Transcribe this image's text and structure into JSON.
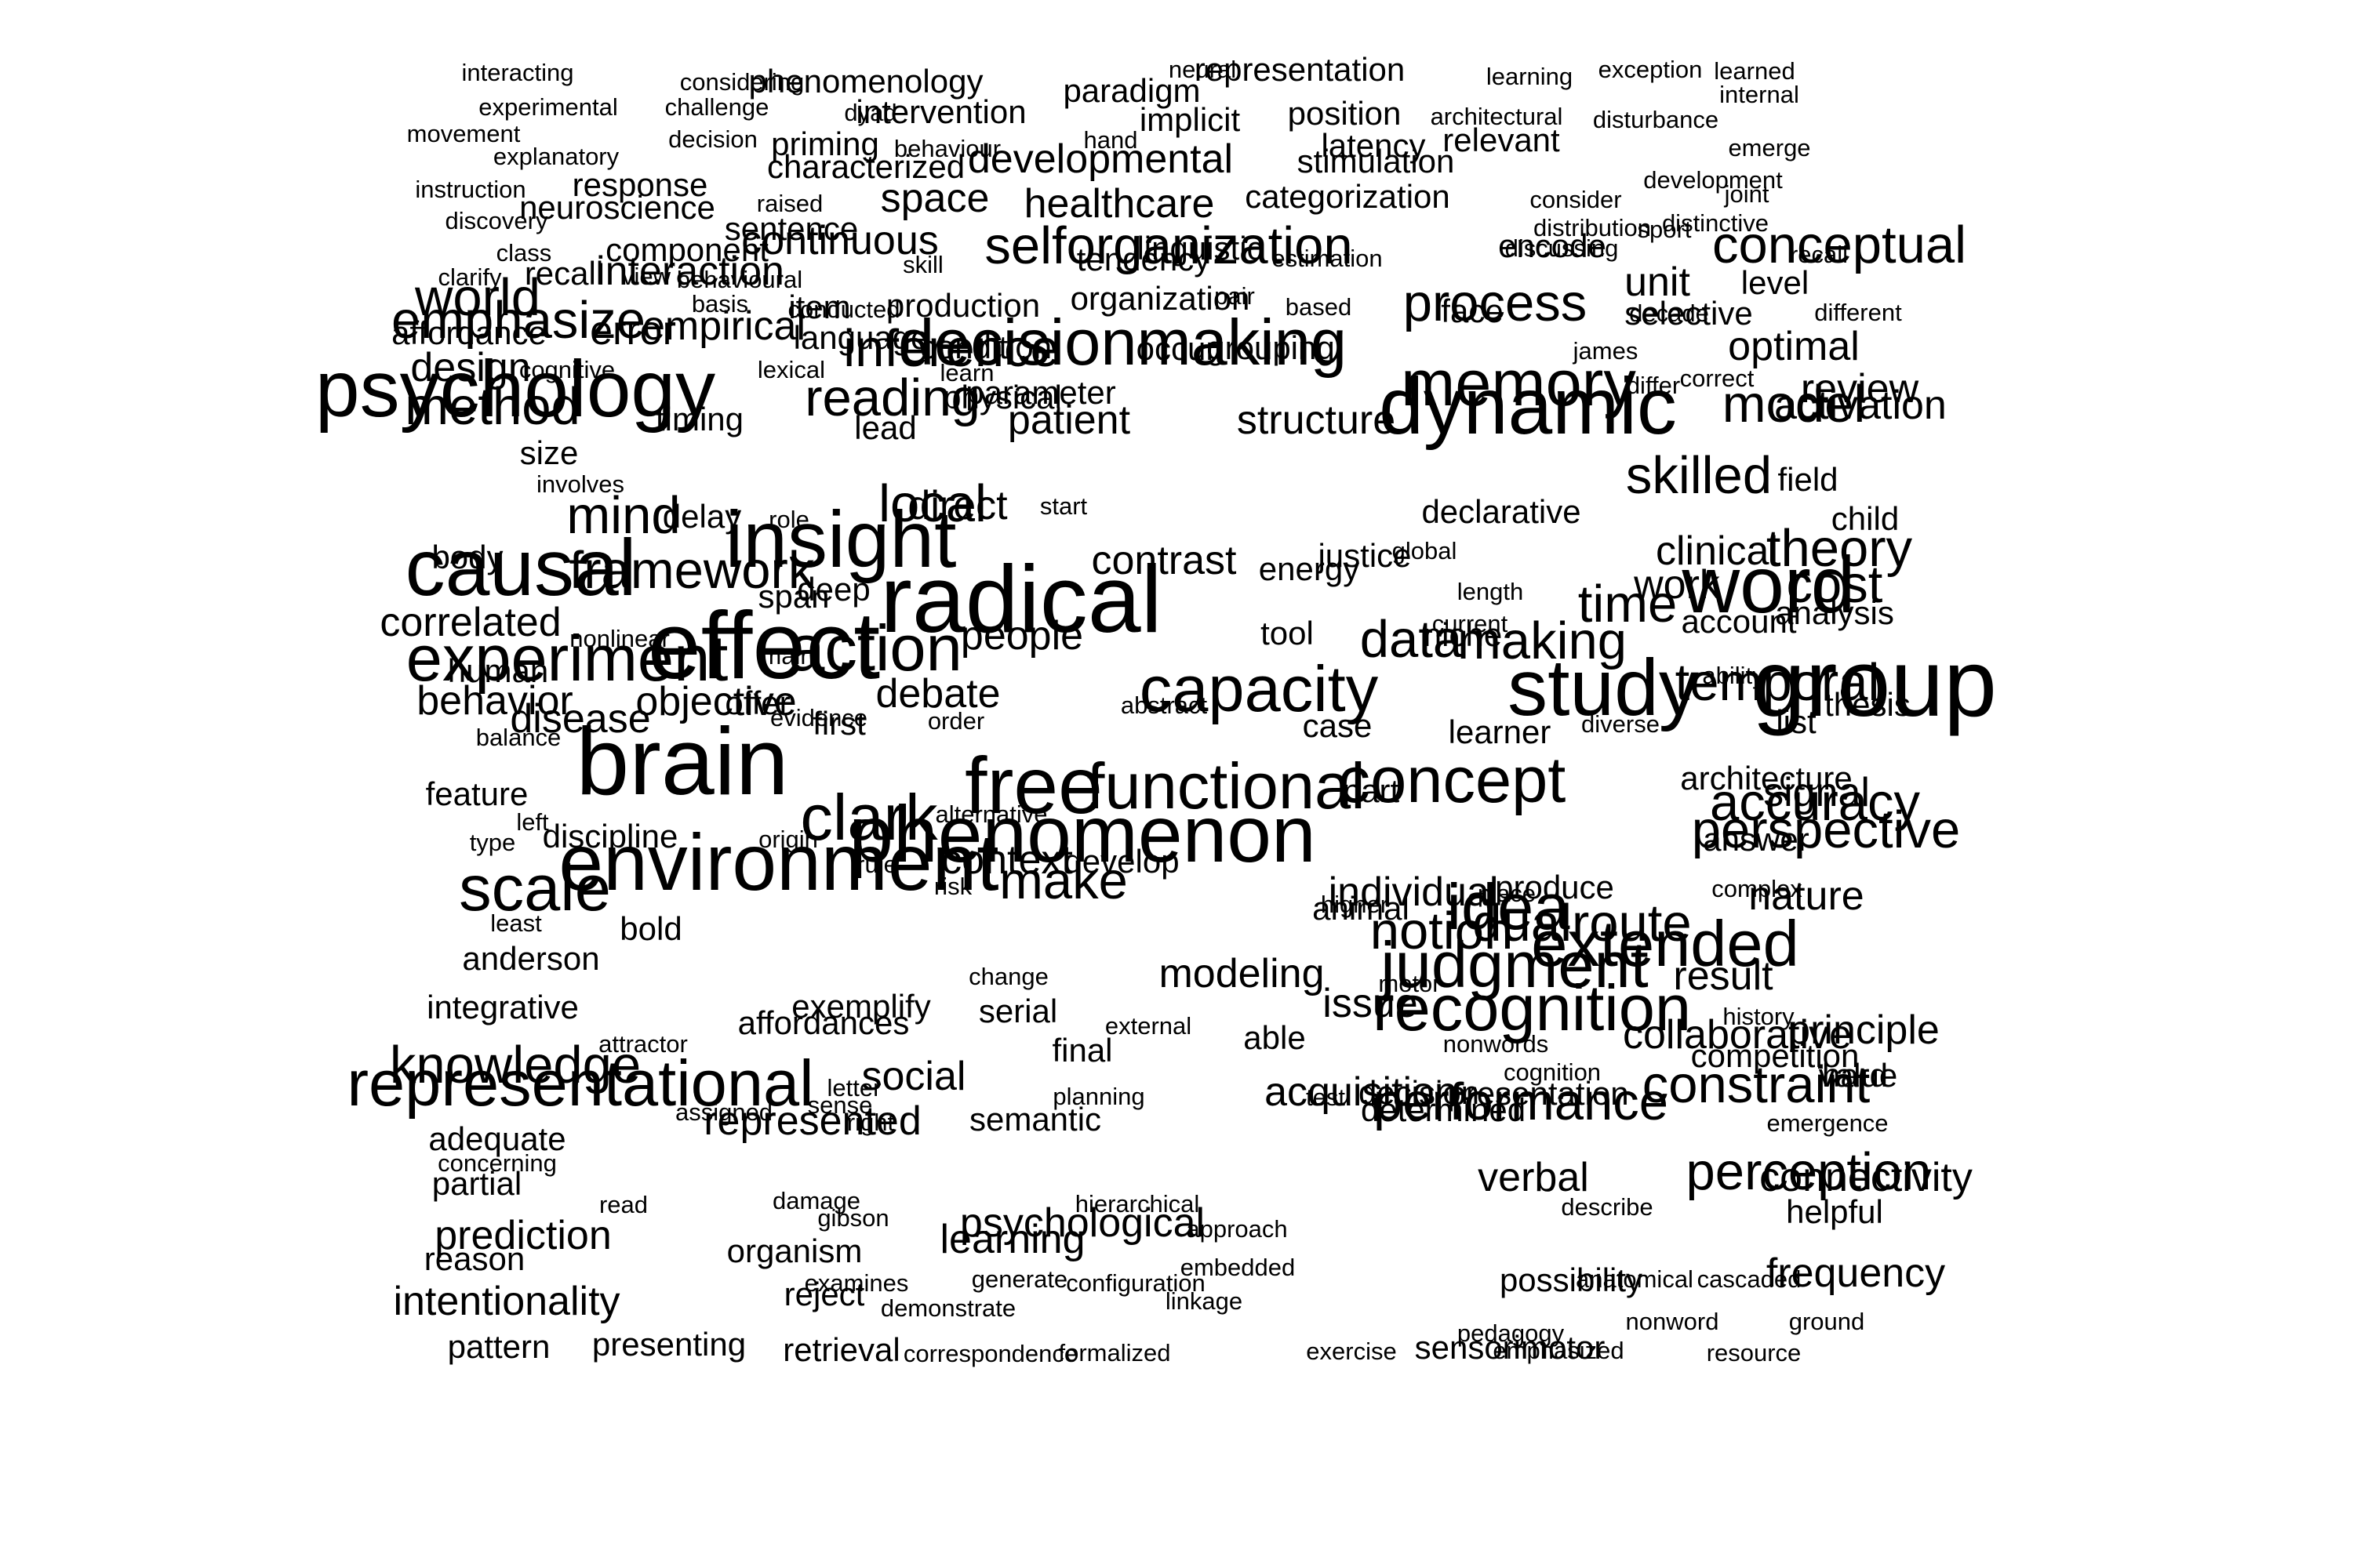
{
  "colors": {
    "background": "#ffffff",
    "text": "#000000"
  },
  "words": [
    {
      "text": "interacting",
      "weight": 1
    },
    {
      "text": "considering",
      "weight": 1
    },
    {
      "text": "phenomenology",
      "weight": 2
    },
    {
      "text": "neural",
      "weight": 1
    },
    {
      "text": "representation",
      "weight": 2
    },
    {
      "text": "learning",
      "weight": 1
    },
    {
      "text": "exception",
      "weight": 1
    },
    {
      "text": "learned",
      "weight": 1
    },
    {
      "text": "paradigm",
      "weight": 2
    },
    {
      "text": "internal",
      "weight": 1
    },
    {
      "text": "experimental",
      "weight": 1
    },
    {
      "text": "challenge",
      "weight": 1
    },
    {
      "text": "dyad",
      "weight": 1
    },
    {
      "text": "intervention",
      "weight": 2
    },
    {
      "text": "implicit",
      "weight": 2
    },
    {
      "text": "position",
      "weight": 2
    },
    {
      "text": "architectural",
      "weight": 1
    },
    {
      "text": "disturbance",
      "weight": 1
    },
    {
      "text": "movement",
      "weight": 1
    },
    {
      "text": "decision",
      "weight": 1
    },
    {
      "text": "priming",
      "weight": 2
    },
    {
      "text": "behaviour",
      "weight": 1
    },
    {
      "text": "hand",
      "weight": 1
    },
    {
      "text": "latency",
      "weight": 2
    },
    {
      "text": "relevant",
      "weight": 2
    },
    {
      "text": "emerge",
      "weight": 1
    },
    {
      "text": "explanatory",
      "weight": 1
    },
    {
      "text": "developmental",
      "weight": 3
    },
    {
      "text": "stimulation",
      "weight": 2
    },
    {
      "text": "instruction",
      "weight": 1
    },
    {
      "text": "response",
      "weight": 2
    },
    {
      "text": "characterized",
      "weight": 2
    },
    {
      "text": "development",
      "weight": 1
    },
    {
      "text": "raised",
      "weight": 1
    },
    {
      "text": "space",
      "weight": 3
    },
    {
      "text": "healthcare",
      "weight": 3
    },
    {
      "text": "categorization",
      "weight": 2
    },
    {
      "text": "consider",
      "weight": 1
    },
    {
      "text": "joint",
      "weight": 1
    },
    {
      "text": "discovery",
      "weight": 1
    },
    {
      "text": "neuroscience",
      "weight": 2
    },
    {
      "text": "sentence",
      "weight": 2
    },
    {
      "text": "distribution",
      "weight": 1
    },
    {
      "text": "distinctive",
      "weight": 1
    },
    {
      "text": "class",
      "weight": 1
    },
    {
      "text": "component",
      "weight": 2
    },
    {
      "text": "continuous",
      "weight": 3
    },
    {
      "text": "selforganization",
      "weight": 4
    },
    {
      "text": "linguistic",
      "weight": 2
    },
    {
      "text": "discussing",
      "weight": 1
    },
    {
      "text": "sport",
      "weight": 1
    },
    {
      "text": "recall",
      "weight": 1
    },
    {
      "text": "clarify",
      "weight": 1
    },
    {
      "text": "recall",
      "weight": 2
    },
    {
      "text": "view",
      "weight": 1
    },
    {
      "text": "behavioural",
      "weight": 1
    },
    {
      "text": "skill",
      "weight": 1
    },
    {
      "text": "tendency",
      "weight": 2
    },
    {
      "text": "estimation",
      "weight": 1
    },
    {
      "text": "encode",
      "weight": 2
    },
    {
      "text": "unit",
      "weight": 3
    },
    {
      "text": "level",
      "weight": 2
    },
    {
      "text": "conceptual",
      "weight": 4
    },
    {
      "text": "world",
      "weight": 4
    },
    {
      "text": "interaction",
      "weight": 3
    },
    {
      "text": "conducted",
      "weight": 1
    },
    {
      "text": "basis",
      "weight": 1
    },
    {
      "text": "item",
      "weight": 2
    },
    {
      "text": "based",
      "weight": 1
    },
    {
      "text": "process",
      "weight": 4
    },
    {
      "text": "production",
      "weight": 2
    },
    {
      "text": "selective",
      "weight": 2
    },
    {
      "text": "affordance",
      "weight": 2
    },
    {
      "text": "emphasize",
      "weight": 4
    },
    {
      "text": "error",
      "weight": 3
    },
    {
      "text": "empirical",
      "weight": 3
    },
    {
      "text": "language",
      "weight": 2
    },
    {
      "text": "organization",
      "weight": 2
    },
    {
      "text": "pair",
      "weight": 1
    },
    {
      "text": "face",
      "weight": 2
    },
    {
      "text": "decade",
      "weight": 1
    },
    {
      "text": "different",
      "weight": 1
    },
    {
      "text": "inference",
      "weight": 4
    },
    {
      "text": "decisionmaking",
      "weight": 5
    },
    {
      "text": "grouping",
      "weight": 2
    },
    {
      "text": "james",
      "weight": 1
    },
    {
      "text": "optimal",
      "weight": 3
    },
    {
      "text": "design",
      "weight": 3
    },
    {
      "text": "cognitive",
      "weight": 1
    },
    {
      "text": "lexical",
      "weight": 1
    },
    {
      "text": "condition",
      "weight": 2
    },
    {
      "text": "learn",
      "weight": 1
    },
    {
      "text": "occur",
      "weight": 2
    },
    {
      "text": "correct",
      "weight": 1
    },
    {
      "text": "review",
      "weight": 3
    },
    {
      "text": "method",
      "weight": 4
    },
    {
      "text": "psychology",
      "weight": 6
    },
    {
      "text": "reading",
      "weight": 4
    },
    {
      "text": "physical",
      "weight": 2
    },
    {
      "text": "parameter",
      "weight": 2
    },
    {
      "text": "memory",
      "weight": 5
    },
    {
      "text": "differ",
      "weight": 1
    },
    {
      "text": "activation",
      "weight": 3
    },
    {
      "text": "size",
      "weight": 2
    },
    {
      "text": "lead",
      "weight": 2
    },
    {
      "text": "patient",
      "weight": 3
    },
    {
      "text": "timing",
      "weight": 2
    },
    {
      "text": "structure",
      "weight": 3
    },
    {
      "text": "dynamic",
      "weight": 6
    },
    {
      "text": "model",
      "weight": 4
    },
    {
      "text": "involves",
      "weight": 1
    },
    {
      "text": "skilled",
      "weight": 4
    },
    {
      "text": "field",
      "weight": 2
    },
    {
      "text": "mind",
      "weight": 4
    },
    {
      "text": "delay",
      "weight": 2
    },
    {
      "text": "role",
      "weight": 1
    },
    {
      "text": "direct",
      "weight": 3
    },
    {
      "text": "start",
      "weight": 1
    },
    {
      "text": "declarative",
      "weight": 2
    },
    {
      "text": "child",
      "weight": 2
    },
    {
      "text": "body",
      "weight": 2
    },
    {
      "text": "insight",
      "weight": 6
    },
    {
      "text": "local",
      "weight": 4
    },
    {
      "text": "contrast",
      "weight": 3
    },
    {
      "text": "justice",
      "weight": 2
    },
    {
      "text": "global",
      "weight": 1
    },
    {
      "text": "clinical",
      "weight": 3
    },
    {
      "text": "theory",
      "weight": 4
    },
    {
      "text": "causal",
      "weight": 6
    },
    {
      "text": "framework",
      "weight": 4
    },
    {
      "text": "span",
      "weight": 2
    },
    {
      "text": "deep",
      "weight": 2
    },
    {
      "text": "energy",
      "weight": 2
    },
    {
      "text": "length",
      "weight": 1
    },
    {
      "text": "work",
      "weight": 3
    },
    {
      "text": "cost",
      "weight": 4
    },
    {
      "text": "word",
      "weight": 6
    },
    {
      "text": "radical",
      "weight": 7
    },
    {
      "text": "current",
      "weight": 1
    },
    {
      "text": "analysis",
      "weight": 2
    },
    {
      "text": "tool",
      "weight": 2
    },
    {
      "text": "niche",
      "weight": 2
    },
    {
      "text": "time",
      "weight": 4
    },
    {
      "text": "making",
      "weight": 4
    },
    {
      "text": "correlated",
      "weight": 3
    },
    {
      "text": "nonlinear",
      "weight": 1
    },
    {
      "text": "main",
      "weight": 1
    },
    {
      "text": "human",
      "weight": 2
    },
    {
      "text": "experiment",
      "weight": 5
    },
    {
      "text": "effect",
      "weight": 7
    },
    {
      "text": "action",
      "weight": 5
    },
    {
      "text": "people",
      "weight": 3
    },
    {
      "text": "data",
      "weight": 4
    },
    {
      "text": "account",
      "weight": 2
    },
    {
      "text": "ability",
      "weight": 1
    },
    {
      "text": "behavior",
      "weight": 3
    },
    {
      "text": "objective",
      "weight": 3
    },
    {
      "text": "offer",
      "weight": 2
    },
    {
      "text": "debate",
      "weight": 3
    },
    {
      "text": "group",
      "weight": 7
    },
    {
      "text": "evidence",
      "weight": 1
    },
    {
      "text": "abstract",
      "weight": 1
    },
    {
      "text": "capacity",
      "weight": 5
    },
    {
      "text": "study",
      "weight": 6
    },
    {
      "text": "temporal",
      "weight": 4
    },
    {
      "text": "thesis",
      "weight": 2
    },
    {
      "text": "balance",
      "weight": 1
    },
    {
      "text": "disease",
      "weight": 3
    },
    {
      "text": "first",
      "weight": 2
    },
    {
      "text": "order",
      "weight": 1
    },
    {
      "text": "case",
      "weight": 2
    },
    {
      "text": "learner",
      "weight": 2
    },
    {
      "text": "diverse",
      "weight": 1
    },
    {
      "text": "list",
      "weight": 2
    },
    {
      "text": "feature",
      "weight": 2
    },
    {
      "text": "brain",
      "weight": 7
    },
    {
      "text": "free",
      "weight": 6
    },
    {
      "text": "functional",
      "weight": 5
    },
    {
      "text": "part",
      "weight": 2
    },
    {
      "text": "concept",
      "weight": 5
    },
    {
      "text": "architecture",
      "weight": 2
    },
    {
      "text": "signal",
      "weight": 3
    },
    {
      "text": "left",
      "weight": 1
    },
    {
      "text": "alternative",
      "weight": 1
    },
    {
      "text": "accuracy",
      "weight": 4
    },
    {
      "text": "type",
      "weight": 1
    },
    {
      "text": "discipline",
      "weight": 2
    },
    {
      "text": "origin",
      "weight": 1
    },
    {
      "text": "clark",
      "weight": 5
    },
    {
      "text": "phenomenon",
      "weight": 6
    },
    {
      "text": "answer",
      "weight": 2
    },
    {
      "text": "perspective",
      "weight": 4
    },
    {
      "text": "rule",
      "weight": 1
    },
    {
      "text": "risk",
      "weight": 1
    },
    {
      "text": "context",
      "weight": 3
    },
    {
      "text": "develop",
      "weight": 2
    },
    {
      "text": "produce",
      "weight": 2
    },
    {
      "text": "nature",
      "weight": 3
    },
    {
      "text": "scale",
      "weight": 5
    },
    {
      "text": "least",
      "weight": 1
    },
    {
      "text": "bold",
      "weight": 2
    },
    {
      "text": "environment",
      "weight": 6
    },
    {
      "text": "make",
      "weight": 4
    },
    {
      "text": "higher",
      "weight": 1
    },
    {
      "text": "individual",
      "weight": 3
    },
    {
      "text": "place",
      "weight": 1
    },
    {
      "text": "complex",
      "weight": 1
    },
    {
      "text": "animal",
      "weight": 2
    },
    {
      "text": "idea",
      "weight": 5
    },
    {
      "text": "dualroute",
      "weight": 4
    },
    {
      "text": "notion",
      "weight": 4
    },
    {
      "text": "extended",
      "weight": 5
    },
    {
      "text": "anderson",
      "weight": 2
    },
    {
      "text": "change",
      "weight": 1
    },
    {
      "text": "modeling",
      "weight": 3
    },
    {
      "text": "motor",
      "weight": 1
    },
    {
      "text": "judgment",
      "weight": 5
    },
    {
      "text": "result",
      "weight": 3
    },
    {
      "text": "integrative",
      "weight": 2
    },
    {
      "text": "exemplify",
      "weight": 2
    },
    {
      "text": "serial",
      "weight": 2
    },
    {
      "text": "issue",
      "weight": 3
    },
    {
      "text": "recognition",
      "weight": 5
    },
    {
      "text": "history",
      "weight": 1
    },
    {
      "text": "principle",
      "weight": 3
    },
    {
      "text": "affordances",
      "weight": 2
    },
    {
      "text": "external",
      "weight": 1
    },
    {
      "text": "collaborative",
      "weight": 3
    },
    {
      "text": "attractor",
      "weight": 1
    },
    {
      "text": "final",
      "weight": 2
    },
    {
      "text": "able",
      "weight": 2
    },
    {
      "text": "nonwords",
      "weight": 1
    },
    {
      "text": "cognition",
      "weight": 1
    },
    {
      "text": "competition",
      "weight": 2
    },
    {
      "text": "knowledge",
      "weight": 4
    },
    {
      "text": "social",
      "weight": 3
    },
    {
      "text": "value",
      "weight": 2
    },
    {
      "text": "representational",
      "weight": 5
    },
    {
      "text": "letter",
      "weight": 1
    },
    {
      "text": "test",
      "weight": 1
    },
    {
      "text": "presentation",
      "weight": 2
    },
    {
      "text": "hard",
      "weight": 2
    },
    {
      "text": "adequate",
      "weight": 2
    },
    {
      "text": "assigned",
      "weight": 1
    },
    {
      "text": "sense",
      "weight": 1
    },
    {
      "text": "planning",
      "weight": 1
    },
    {
      "text": "decision",
      "weight": 2
    },
    {
      "text": "performance",
      "weight": 4
    },
    {
      "text": "constraint",
      "weight": 4
    },
    {
      "text": "represented",
      "weight": 3
    },
    {
      "text": "concerning",
      "weight": 1
    },
    {
      "text": "right",
      "weight": 1
    },
    {
      "text": "semantic",
      "weight": 2
    },
    {
      "text": "acquisition",
      "weight": 3
    },
    {
      "text": "determined",
      "weight": 2
    },
    {
      "text": "emergence",
      "weight": 1
    },
    {
      "text": "partial",
      "weight": 2
    },
    {
      "text": "read",
      "weight": 1
    },
    {
      "text": "damage",
      "weight": 1
    },
    {
      "text": "hierarchical",
      "weight": 1
    },
    {
      "text": "verbal",
      "weight": 3
    },
    {
      "text": "perception",
      "weight": 4
    },
    {
      "text": "connectivity",
      "weight": 3
    },
    {
      "text": "reason",
      "weight": 2
    },
    {
      "text": "gibson",
      "weight": 1
    },
    {
      "text": "psychological",
      "weight": 3
    },
    {
      "text": "approach",
      "weight": 1
    },
    {
      "text": "describe",
      "weight": 1
    },
    {
      "text": "helpful",
      "weight": 2
    },
    {
      "text": "prediction",
      "weight": 3
    },
    {
      "text": "organism",
      "weight": 2
    },
    {
      "text": "learning",
      "weight": 3
    },
    {
      "text": "embedded",
      "weight": 1
    },
    {
      "text": "anatomical",
      "weight": 1
    },
    {
      "text": "cascaded",
      "weight": 1
    },
    {
      "text": "examines",
      "weight": 1
    },
    {
      "text": "generate",
      "weight": 1
    },
    {
      "text": "configuration",
      "weight": 1
    },
    {
      "text": "possibility",
      "weight": 2
    },
    {
      "text": "frequency",
      "weight": 3
    },
    {
      "text": "intentionality",
      "weight": 3
    },
    {
      "text": "reject",
      "weight": 2
    },
    {
      "text": "demonstrate",
      "weight": 1
    },
    {
      "text": "linkage",
      "weight": 1
    },
    {
      "text": "pedagogy",
      "weight": 1
    },
    {
      "text": "emphasized",
      "weight": 1
    },
    {
      "text": "nonword",
      "weight": 1
    },
    {
      "text": "ground",
      "weight": 1
    },
    {
      "text": "pattern",
      "weight": 2
    },
    {
      "text": "presenting",
      "weight": 2
    },
    {
      "text": "retrieval",
      "weight": 2
    },
    {
      "text": "correspondence",
      "weight": 1
    },
    {
      "text": "formalized",
      "weight": 1
    },
    {
      "text": "exercise",
      "weight": 1
    },
    {
      "text": "sensorimotor",
      "weight": 2
    },
    {
      "text": "resource",
      "weight": 1
    }
  ]
}
